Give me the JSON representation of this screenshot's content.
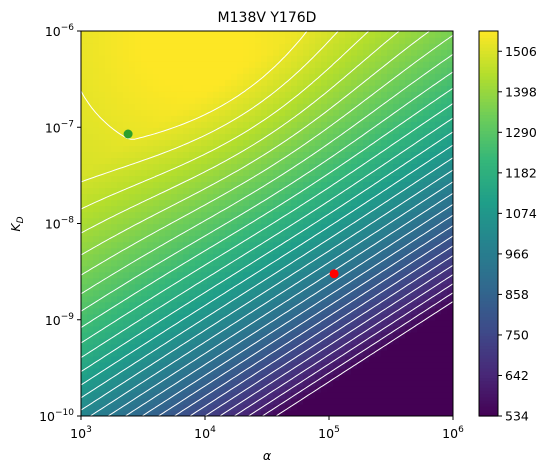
{
  "chart_data": {
    "type": "heatmap",
    "title": "M138V Y176D",
    "xlabel": "α",
    "ylabel": "K",
    "ylabel_sub": "D",
    "x_scale": "log",
    "y_scale": "log",
    "xlim": [
      1000,
      1000000
    ],
    "ylim": [
      1e-10,
      1e-06
    ],
    "x_ticks": [
      {
        "base": "10",
        "exp": "3"
      },
      {
        "base": "10",
        "exp": "4"
      },
      {
        "base": "10",
        "exp": "5"
      },
      {
        "base": "10",
        "exp": "6"
      }
    ],
    "y_ticks": [
      {
        "base": "10",
        "exp": "−10"
      },
      {
        "base": "10",
        "exp": "−9"
      },
      {
        "base": "10",
        "exp": "−8"
      },
      {
        "base": "10",
        "exp": "−7"
      },
      {
        "base": "10",
        "exp": "−6"
      }
    ],
    "colorbar": {
      "colormap": "viridis",
      "range": [
        534,
        1560
      ],
      "ticks": [
        "534",
        "642",
        "750",
        "858",
        "966",
        "1074",
        "1182",
        "1290",
        "1398",
        "1506"
      ]
    },
    "contour_color": "#ffffff",
    "points": [
      {
        "name": "green-point",
        "alpha": 2400,
        "kd": 8.5e-08,
        "color": "#2ca02c"
      },
      {
        "name": "red-point",
        "alpha": 110000,
        "kd": 3e-09,
        "color": "#ff0000"
      }
    ]
  }
}
